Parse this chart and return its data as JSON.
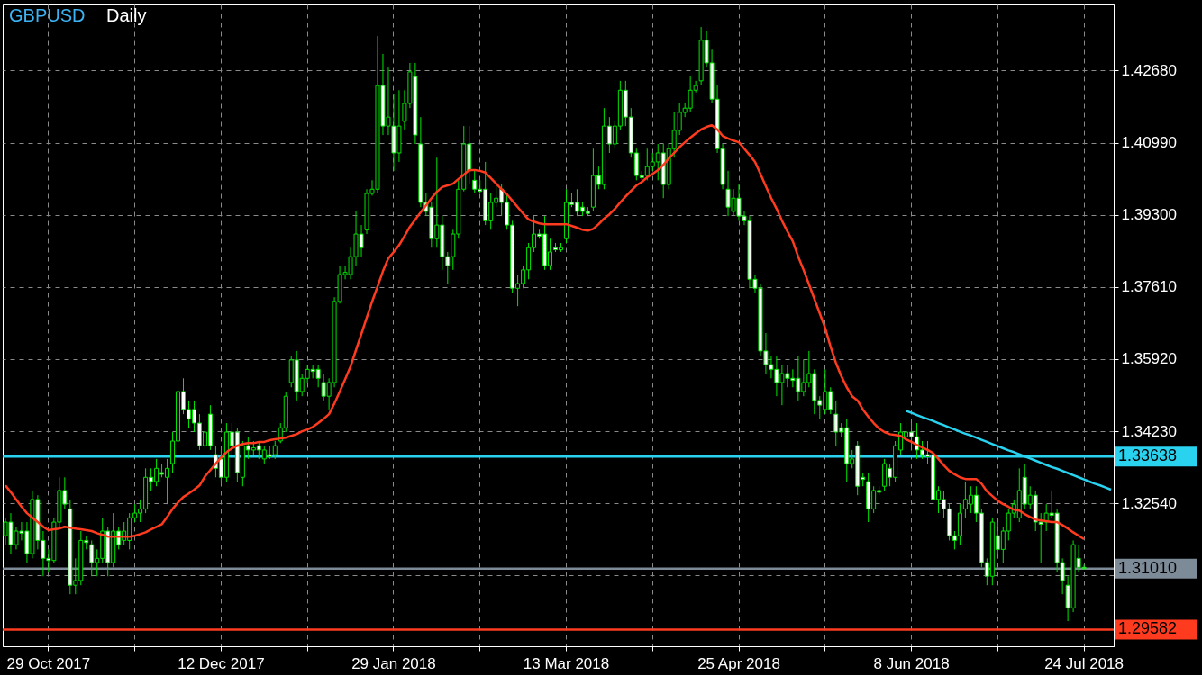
{
  "chart_data": {
    "type": "candlestick",
    "title": "GBPUSD",
    "subtitle": "Daily",
    "categories": [
      null,
      null,
      null,
      null,
      null,
      null,
      null,
      null,
      "29 Oct 2017",
      null,
      null,
      null,
      null,
      null,
      null,
      null,
      null,
      null,
      null,
      null,
      null,
      null,
      null,
      null,
      null,
      null,
      null,
      null,
      null,
      null,
      null,
      null,
      null,
      null,
      null,
      null,
      null,
      null,
      null,
      null,
      "12 Dec 2017",
      null,
      null,
      null,
      null,
      null,
      null,
      null,
      null,
      null,
      null,
      null,
      null,
      null,
      null,
      null,
      null,
      null,
      null,
      null,
      null,
      null,
      null,
      null,
      null,
      null,
      null,
      null,
      null,
      null,
      null,
      null,
      "29 Jan 2018",
      null,
      null,
      null,
      null,
      null,
      null,
      null,
      null,
      null,
      null,
      null,
      null,
      null,
      null,
      null,
      null,
      null,
      null,
      null,
      null,
      null,
      null,
      null,
      null,
      null,
      null,
      null,
      null,
      null,
      null,
      null,
      "13 Mar 2018",
      null,
      null,
      null,
      null,
      null,
      null,
      null,
      null,
      null,
      null,
      null,
      null,
      null,
      null,
      null,
      null,
      null,
      null,
      null,
      null,
      null,
      null,
      null,
      null,
      null,
      null,
      null,
      null,
      null,
      null,
      null,
      "25 Apr 2018",
      null,
      null,
      null,
      null,
      null,
      null,
      null,
      null,
      null,
      null,
      null,
      null,
      null,
      null,
      null,
      null,
      null,
      null,
      null,
      null,
      null,
      null,
      null,
      null,
      null,
      null,
      null,
      null,
      null,
      null,
      null,
      "8 Jun 2018",
      null,
      null,
      null,
      null,
      null,
      null,
      null,
      null,
      null,
      null,
      null,
      null,
      null,
      null,
      null,
      null,
      null,
      null,
      null,
      null,
      null,
      null,
      null,
      null,
      null,
      null,
      null,
      null,
      null,
      null,
      null,
      "24 Jul 2018",
      null,
      null,
      null,
      null,
      null
    ],
    "color": "#00e600",
    "ohlc": [
      [
        1.3178,
        1.322,
        1.3157,
        1.321
      ],
      [
        1.321,
        1.3231,
        1.3136,
        1.3157
      ],
      [
        1.3157,
        1.3199,
        1.3146,
        1.3189
      ],
      [
        1.3189,
        1.321,
        1.3167,
        1.3184
      ],
      [
        1.3189,
        1.321,
        1.3115,
        1.3136
      ],
      [
        1.3136,
        1.3284,
        1.3125,
        1.3263
      ],
      [
        1.3263,
        1.3273,
        1.3146,
        1.3167
      ],
      [
        1.3167,
        1.3189,
        1.3083,
        1.3125
      ],
      [
        1.3125,
        1.3146,
        1.3094,
        1.312
      ],
      [
        1.312,
        1.322,
        1.3115,
        1.321
      ],
      [
        1.321,
        1.3315,
        1.3199,
        1.3284
      ],
      [
        1.3284,
        1.3315,
        1.3241,
        1.3252
      ],
      [
        1.3241,
        1.3263,
        1.3041,
        1.3062
      ],
      [
        1.3062,
        1.3125,
        1.3041,
        1.3073
      ],
      [
        1.3073,
        1.3189,
        1.3062,
        1.3167
      ],
      [
        1.3167,
        1.3178,
        1.3146,
        1.3162
      ],
      [
        1.3157,
        1.3167,
        1.3083,
        1.3115
      ],
      [
        1.3115,
        1.3146,
        1.3083,
        1.3125
      ],
      [
        1.3125,
        1.322,
        1.3115,
        1.3189
      ],
      [
        1.3189,
        1.3199,
        1.3083,
        1.3115
      ],
      [
        1.3115,
        1.3231,
        1.3104,
        1.3189
      ],
      [
        1.3189,
        1.3199,
        1.3146,
        1.3157
      ],
      [
        1.3167,
        1.321,
        1.3157,
        1.3189
      ],
      [
        1.3167,
        1.3231,
        1.3146,
        1.322
      ],
      [
        1.322,
        1.3252,
        1.321,
        1.3231
      ],
      [
        1.3231,
        1.3263,
        1.321,
        1.3241
      ],
      [
        1.3241,
        1.3336,
        1.3231,
        1.3315
      ],
      [
        1.3315,
        1.3336,
        1.3284,
        1.3305
      ],
      [
        1.3305,
        1.3358,
        1.3294,
        1.3336
      ],
      [
        1.3326,
        1.3347,
        1.3315,
        1.3322
      ],
      [
        1.3315,
        1.3358,
        1.3252,
        1.3336
      ],
      [
        1.3347,
        1.3421,
        1.3326,
        1.34
      ],
      [
        1.34,
        1.3547,
        1.3389,
        1.3516
      ],
      [
        1.3516,
        1.3547,
        1.3463,
        1.3474
      ],
      [
        1.3474,
        1.3495,
        1.3431,
        1.3452
      ],
      [
        1.3474,
        1.3495,
        1.3421,
        1.3442
      ],
      [
        1.3442,
        1.3463,
        1.3379,
        1.3389
      ],
      [
        1.3389,
        1.3452,
        1.3379,
        1.3421
      ],
      [
        1.3463,
        1.3484,
        1.3379,
        1.3389
      ],
      [
        1.3368,
        1.3389,
        1.3315,
        1.3336
      ],
      [
        1.3358,
        1.3379,
        1.3305,
        1.3315
      ],
      [
        1.3315,
        1.3442,
        1.3305,
        1.3421
      ],
      [
        1.3421,
        1.3442,
        1.3368,
        1.3389
      ],
      [
        1.3421,
        1.3431,
        1.3305,
        1.3326
      ],
      [
        1.3315,
        1.34,
        1.3294,
        1.3389
      ],
      [
        1.3389,
        1.341,
        1.3358,
        1.3379
      ],
      [
        1.3379,
        1.34,
        1.3368,
        1.3384
      ],
      [
        1.3389,
        1.34,
        1.3358,
        1.3379
      ],
      [
        1.3358,
        1.3389,
        1.3347,
        1.3379
      ],
      [
        1.3368,
        1.3389,
        1.3358,
        1.3363
      ],
      [
        1.3368,
        1.34,
        1.3358,
        1.3389
      ],
      [
        1.34,
        1.3442,
        1.3395,
        1.3431
      ],
      [
        1.3431,
        1.3516,
        1.3421,
        1.3505
      ],
      [
        1.3537,
        1.36,
        1.3526,
        1.359
      ],
      [
        1.359,
        1.3611,
        1.3495,
        1.3516
      ],
      [
        1.3516,
        1.3558,
        1.3505,
        1.3547
      ],
      [
        1.3547,
        1.3579,
        1.3537,
        1.3568
      ],
      [
        1.3568,
        1.3579,
        1.3547,
        1.3563
      ],
      [
        1.3568,
        1.3579,
        1.3526,
        1.3547
      ],
      [
        1.3537,
        1.3558,
        1.3495,
        1.3505
      ],
      [
        1.3505,
        1.3547,
        1.3474,
        1.3537
      ],
      [
        1.3537,
        1.3737,
        1.3526,
        1.3727
      ],
      [
        1.3727,
        1.3811,
        1.3722,
        1.379
      ],
      [
        1.379,
        1.3811,
        1.3779,
        1.3795
      ],
      [
        1.379,
        1.3853,
        1.3779,
        1.3832
      ],
      [
        1.3832,
        1.3938,
        1.3811,
        1.3885
      ],
      [
        1.3885,
        1.3906,
        1.3832,
        1.3853
      ],
      [
        1.3895,
        1.399,
        1.3885,
        1.398
      ],
      [
        1.398,
        1.4011,
        1.3975,
        1.399
      ],
      [
        1.399,
        1.4349,
        1.398,
        1.4233
      ],
      [
        1.4233,
        1.4307,
        1.4117,
        1.4138
      ],
      [
        1.4138,
        1.4275,
        1.4117,
        1.4159
      ],
      [
        1.4138,
        1.4212,
        1.4033,
        1.4075
      ],
      [
        1.4075,
        1.4222,
        1.4054,
        1.4138
      ],
      [
        1.4149,
        1.4222,
        1.4128,
        1.4191
      ],
      [
        1.4191,
        1.4286,
        1.418,
        1.4265
      ],
      [
        1.4254,
        1.4286,
        1.4096,
        1.4117
      ],
      [
        1.4096,
        1.4159,
        1.3948,
        1.3959
      ],
      [
        1.3959,
        1.398,
        1.3927,
        1.3938
      ],
      [
        1.3948,
        1.3959,
        1.3853,
        1.3874
      ],
      [
        1.3874,
        1.4064,
        1.3853,
        1.3906
      ],
      [
        1.3906,
        1.3927,
        1.3801,
        1.3832
      ],
      [
        1.3832,
        1.3843,
        1.3769,
        1.3811
      ],
      [
        1.3832,
        1.3895,
        1.3801,
        1.3885
      ],
      [
        1.3885,
        1.4011,
        1.3874,
        1.399
      ],
      [
        1.399,
        1.4138,
        1.3985,
        1.4096
      ],
      [
        1.4096,
        1.4138,
        1.4001,
        1.4033
      ],
      [
        1.4011,
        1.4033,
        1.398,
        1.399
      ],
      [
        1.399,
        1.4011,
        1.398,
        1.3985
      ],
      [
        1.399,
        1.4054,
        1.3906,
        1.3916
      ],
      [
        1.3916,
        1.398,
        1.3895,
        1.3959
      ],
      [
        1.3959,
        1.4001,
        1.3948,
        1.3969
      ],
      [
        1.399,
        1.4001,
        1.3927,
        1.3959
      ],
      [
        1.3959,
        1.398,
        1.3895,
        1.3906
      ],
      [
        1.3906,
        1.3916,
        1.3748,
        1.3758
      ],
      [
        1.3758,
        1.379,
        1.3716,
        1.3769
      ],
      [
        1.3769,
        1.3811,
        1.3758,
        1.3801
      ],
      [
        1.3801,
        1.3864,
        1.3779,
        1.3853
      ],
      [
        1.3853,
        1.3927,
        1.3843,
        1.3885
      ],
      [
        1.3885,
        1.3895,
        1.3874,
        1.388
      ],
      [
        1.3885,
        1.3927,
        1.3801,
        1.3811
      ],
      [
        1.3811,
        1.3874,
        1.3801,
        1.3843
      ],
      [
        1.3853,
        1.3864,
        1.3843,
        1.3848
      ],
      [
        1.3848,
        1.3864,
        1.3843,
        1.3853
      ],
      [
        1.3874,
        1.399,
        1.3864,
        1.3959
      ],
      [
        1.3959,
        1.398,
        1.3948,
        1.3954
      ],
      [
        1.3959,
        1.399,
        1.3927,
        1.3938
      ],
      [
        1.3948,
        1.3959,
        1.3927,
        1.3938
      ],
      [
        1.3938,
        1.3948,
        1.3927,
        1.3933
      ],
      [
        1.3948,
        1.4085,
        1.3938,
        1.4022
      ],
      [
        1.4022,
        1.4043,
        1.399,
        1.4001
      ],
      [
        1.4001,
        1.418,
        1.399,
        1.4138
      ],
      [
        1.4138,
        1.4159,
        1.4075,
        1.4096
      ],
      [
        1.4096,
        1.4149,
        1.4085,
        1.4138
      ],
      [
        1.4138,
        1.4244,
        1.4128,
        1.4222
      ],
      [
        1.4222,
        1.4244,
        1.4138,
        1.4159
      ],
      [
        1.4159,
        1.418,
        1.4064,
        1.4075
      ],
      [
        1.4075,
        1.4085,
        1.4011,
        1.4022
      ],
      [
        1.4022,
        1.4033,
        1.4011,
        1.4017
      ],
      [
        1.4022,
        1.4085,
        1.4011,
        1.4043
      ],
      [
        1.4043,
        1.4075,
        1.4033,
        1.4054
      ],
      [
        1.4054,
        1.4096,
        1.4011,
        1.4075
      ],
      [
        1.4075,
        1.4096,
        1.3969,
        1.4001
      ],
      [
        1.4001,
        1.4096,
        1.399,
        1.4085
      ],
      [
        1.4085,
        1.417,
        1.4064,
        1.4128
      ],
      [
        1.4128,
        1.4191,
        1.4117,
        1.417
      ],
      [
        1.417,
        1.4191,
        1.4159,
        1.418
      ],
      [
        1.418,
        1.4254,
        1.417,
        1.4222
      ],
      [
        1.4222,
        1.4244,
        1.4217,
        1.4233
      ],
      [
        1.4244,
        1.437,
        1.4233,
        1.4339
      ],
      [
        1.4339,
        1.436,
        1.4275,
        1.4286
      ],
      [
        1.4286,
        1.4317,
        1.4191,
        1.4201
      ],
      [
        1.4201,
        1.4233,
        1.4075,
        1.4085
      ],
      [
        1.4085,
        1.4096,
        1.399,
        1.4001
      ],
      [
        1.399,
        1.4033,
        1.3927,
        1.3948
      ],
      [
        1.3938,
        1.399,
        1.3927,
        1.3969
      ],
      [
        1.3969,
        1.4001,
        1.3916,
        1.3927
      ],
      [
        1.3927,
        1.3938,
        1.3906,
        1.3916
      ],
      [
        1.3916,
        1.3927,
        1.3758,
        1.3779
      ],
      [
        1.3779,
        1.379,
        1.3748,
        1.3758
      ],
      [
        1.3758,
        1.3769,
        1.36,
        1.3611
      ],
      [
        1.3611,
        1.3653,
        1.3558,
        1.3579
      ],
      [
        1.3579,
        1.36,
        1.3547,
        1.3568
      ],
      [
        1.3568,
        1.36,
        1.3505,
        1.3537
      ],
      [
        1.3537,
        1.3579,
        1.3484,
        1.3558
      ],
      [
        1.3558,
        1.3579,
        1.3526,
        1.3547
      ],
      [
        1.3547,
        1.3568,
        1.3526,
        1.3542
      ],
      [
        1.3547,
        1.36,
        1.3495,
        1.3516
      ],
      [
        1.3516,
        1.359,
        1.3505,
        1.3537
      ],
      [
        1.3537,
        1.3611,
        1.3526,
        1.3558
      ],
      [
        1.3558,
        1.3568,
        1.3463,
        1.3495
      ],
      [
        1.3495,
        1.3505,
        1.3452,
        1.3484
      ],
      [
        1.3474,
        1.3568,
        1.3463,
        1.3516
      ],
      [
        1.3516,
        1.3526,
        1.3463,
        1.3474
      ],
      [
        1.3463,
        1.3495,
        1.3389,
        1.3421
      ],
      [
        1.3431,
        1.3442,
        1.341,
        1.3421
      ],
      [
        1.3431,
        1.3452,
        1.3305,
        1.3347
      ],
      [
        1.3347,
        1.3379,
        1.3336,
        1.3358
      ],
      [
        1.3389,
        1.34,
        1.3273,
        1.3294
      ],
      [
        1.3315,
        1.3326,
        1.3294,
        1.331
      ],
      [
        1.3305,
        1.3326,
        1.321,
        1.3241
      ],
      [
        1.3241,
        1.3294,
        1.3231,
        1.3284
      ],
      [
        1.3284,
        1.3294,
        1.3273,
        1.328
      ],
      [
        1.3294,
        1.3358,
        1.3284,
        1.3347
      ],
      [
        1.3336,
        1.3347,
        1.3294,
        1.3315
      ],
      [
        1.3315,
        1.34,
        1.3305,
        1.3389
      ],
      [
        1.3379,
        1.3442,
        1.3368,
        1.3421
      ],
      [
        1.341,
        1.3452,
        1.3379,
        1.3421
      ],
      [
        1.3421,
        1.3442,
        1.3379,
        1.341
      ],
      [
        1.341,
        1.3442,
        1.3358,
        1.3379
      ],
      [
        1.3379,
        1.34,
        1.3358,
        1.3368
      ],
      [
        1.3368,
        1.34,
        1.3347,
        1.3363
      ],
      [
        1.3368,
        1.3442,
        1.3252,
        1.3263
      ],
      [
        1.3263,
        1.3294,
        1.3231,
        1.3284
      ],
      [
        1.3263,
        1.3284,
        1.322,
        1.3241
      ],
      [
        1.3241,
        1.3252,
        1.3167,
        1.3178
      ],
      [
        1.3178,
        1.3189,
        1.3146,
        1.3167
      ],
      [
        1.3178,
        1.3252,
        1.3157,
        1.3231
      ],
      [
        1.3241,
        1.3305,
        1.322,
        1.3263
      ],
      [
        1.3252,
        1.3294,
        1.3231,
        1.3273
      ],
      [
        1.3273,
        1.3294,
        1.321,
        1.3231
      ],
      [
        1.3231,
        1.3241,
        1.3104,
        1.3115
      ],
      [
        1.3115,
        1.3125,
        1.3062,
        1.3083
      ],
      [
        1.3083,
        1.322,
        1.3062,
        1.321
      ],
      [
        1.3178,
        1.321,
        1.3125,
        1.3146
      ],
      [
        1.3146,
        1.3199,
        1.3115,
        1.3189
      ],
      [
        1.3189,
        1.3241,
        1.3167,
        1.3231
      ],
      [
        1.3231,
        1.3263,
        1.322,
        1.3252
      ],
      [
        1.322,
        1.3336,
        1.321,
        1.3284
      ],
      [
        1.3315,
        1.3347,
        1.3241,
        1.3252
      ],
      [
        1.3252,
        1.3294,
        1.3241,
        1.3273
      ],
      [
        1.3273,
        1.3284,
        1.3189,
        1.321
      ],
      [
        1.321,
        1.3231,
        1.3115,
        1.3205
      ],
      [
        1.321,
        1.3252,
        1.3189,
        1.3231
      ],
      [
        1.3231,
        1.3284,
        1.322,
        1.3226
      ],
      [
        1.3231,
        1.3241,
        1.3094,
        1.3115
      ],
      [
        1.3115,
        1.3125,
        1.3041,
        1.3073
      ],
      [
        1.3062,
        1.3083,
        1.2978,
        1.3009
      ],
      [
        1.3009,
        1.3167,
        1.2999,
        1.3157
      ],
      [
        1.3125,
        1.3157,
        1.3094,
        1.3104
      ],
      [
        1.3104,
        1.311,
        1.3099,
        1.3101
      ],
      null,
      null,
      null,
      null,
      null
    ],
    "series": [
      {
        "type": "line",
        "color": "#ff3b1f",
        "values": [
          1.3296,
          1.328,
          1.3263,
          1.3246,
          1.3231,
          1.322,
          1.321,
          1.3199,
          1.3191,
          1.3193,
          1.3195,
          1.3199,
          1.3197,
          1.3195,
          1.3193,
          1.3191,
          1.3189,
          1.3184,
          1.318,
          1.3176,
          1.3176,
          1.3176,
          1.3176,
          1.3176,
          1.3178,
          1.3182,
          1.3186,
          1.3193,
          1.3199,
          1.3205,
          1.3222,
          1.3241,
          1.3256,
          1.3269,
          1.3277,
          1.3286,
          1.3296,
          1.3317,
          1.3332,
          1.3347,
          1.3362,
          1.3374,
          1.3383,
          1.3389,
          1.3393,
          1.3395,
          1.3395,
          1.3398,
          1.3398,
          1.3402,
          1.3404,
          1.3406,
          1.3408,
          1.3412,
          1.3416,
          1.3423,
          1.3427,
          1.3433,
          1.3442,
          1.3452,
          1.3463,
          1.3488,
          1.3516,
          1.3545,
          1.3575,
          1.3613,
          1.3651,
          1.3689,
          1.3727,
          1.3762,
          1.3798,
          1.3828,
          1.3843,
          1.3859,
          1.388,
          1.3902,
          1.3919,
          1.3936,
          1.3952,
          1.3969,
          1.3984,
          1.3995,
          1.3999,
          1.4003,
          1.4014,
          1.4024,
          1.4035,
          1.4035,
          1.4033,
          1.4029,
          1.4016,
          1.4003,
          1.399,
          1.3978,
          1.3963,
          1.3948,
          1.3933,
          1.3919,
          1.3914,
          1.391,
          1.3908,
          1.3908,
          1.3908,
          1.3908,
          1.3908,
          1.3904,
          1.39,
          1.3895,
          1.3893,
          1.3897,
          1.3908,
          1.3921,
          1.3931,
          1.3944,
          1.3959,
          1.3973,
          1.3986,
          1.3999,
          1.4007,
          1.4018,
          1.4026,
          1.4035,
          1.4047,
          1.4062,
          1.4075,
          1.4089,
          1.41,
          1.4111,
          1.4121,
          1.413,
          1.4136,
          1.414,
          1.413,
          1.4115,
          1.4109,
          1.4104,
          1.41,
          1.4085,
          1.407,
          1.4054,
          1.4026,
          1.3997,
          1.3969,
          1.3944,
          1.3916,
          1.3891,
          1.3868,
          1.3832,
          1.3801,
          1.3767,
          1.3733,
          1.3699,
          1.3665,
          1.3621,
          1.3583,
          1.3552,
          1.3526,
          1.3505,
          1.3495,
          1.3474,
          1.3457,
          1.3442,
          1.3429,
          1.3421,
          1.3416,
          1.3414,
          1.3412,
          1.3404,
          1.3398,
          1.3391,
          1.3385,
          1.3379,
          1.3372,
          1.3358,
          1.3343,
          1.333,
          1.3322,
          1.3315,
          1.3311,
          1.3311,
          1.3311,
          1.33,
          1.3282,
          1.3271,
          1.326,
          1.3252,
          1.3246,
          1.3239,
          1.3237,
          1.3229,
          1.3222,
          1.3216,
          1.3214,
          1.3212,
          1.321,
          1.321,
          1.3203,
          1.3195,
          1.3186,
          1.3178,
          1.317,
          null,
          null,
          null,
          null,
          null
        ]
      },
      {
        "type": "line",
        "color": "#29d3f0",
        "values": [
          null,
          null,
          null,
          null,
          null,
          null,
          null,
          null,
          null,
          null,
          null,
          null,
          null,
          null,
          null,
          null,
          null,
          null,
          null,
          null,
          null,
          null,
          null,
          null,
          null,
          null,
          null,
          null,
          null,
          null,
          null,
          null,
          null,
          null,
          null,
          null,
          null,
          null,
          null,
          null,
          null,
          null,
          null,
          null,
          null,
          null,
          null,
          null,
          null,
          null,
          null,
          null,
          null,
          null,
          null,
          null,
          null,
          null,
          null,
          null,
          null,
          null,
          null,
          null,
          null,
          null,
          null,
          null,
          null,
          null,
          null,
          null,
          null,
          null,
          null,
          null,
          null,
          null,
          null,
          null,
          null,
          null,
          null,
          null,
          null,
          null,
          null,
          null,
          null,
          null,
          null,
          null,
          null,
          null,
          null,
          null,
          null,
          null,
          null,
          null,
          null,
          null,
          null,
          null,
          null,
          null,
          null,
          null,
          null,
          null,
          null,
          null,
          null,
          null,
          null,
          null,
          null,
          null,
          null,
          null,
          null,
          null,
          null,
          null,
          null,
          null,
          null,
          null,
          null,
          null,
          null,
          null,
          null,
          null,
          null,
          null,
          null,
          null,
          null,
          null,
          null,
          null,
          null,
          null,
          null,
          null,
          null,
          null,
          null,
          null,
          null,
          null,
          null,
          null,
          null,
          null,
          null,
          null,
          null,
          null,
          null,
          null,
          null,
          null,
          null,
          null,
          null,
          1.3471,
          1.3466,
          1.3461,
          1.3456,
          1.3452,
          1.3447,
          1.3442,
          1.3437,
          1.3432,
          1.3427,
          1.3422,
          1.3417,
          1.3413,
          1.3408,
          1.3403,
          1.3398,
          1.3393,
          1.3388,
          1.3383,
          1.3378,
          1.3374,
          1.3369,
          1.3364,
          1.3359,
          1.3354,
          1.3349,
          1.3344,
          1.3339,
          1.3335,
          1.333,
          1.3325,
          1.332,
          1.3315,
          1.331,
          1.3305,
          1.33,
          1.3296,
          1.3291,
          1.3286
        ]
      }
    ],
    "ylim": [
      1.2919,
      1.4423
    ],
    "yticks": [
      {
        "value": 1.3085,
        "label": null
      },
      {
        "value": 1.3254,
        "label": "1.32540"
      },
      {
        "value": 1.3423,
        "label": "1.34230"
      },
      {
        "value": 1.3592,
        "label": "1.35920"
      },
      {
        "value": 1.3761,
        "label": "1.37610"
      },
      {
        "value": 1.393,
        "label": "1.39300"
      },
      {
        "value": 1.4099,
        "label": "1.40990"
      },
      {
        "value": 1.4268,
        "label": "1.42680"
      }
    ],
    "ref_lines": [
      {
        "axis": "y",
        "value": 1.33638,
        "label": "1.33638",
        "color": "#29d3f0"
      },
      {
        "axis": "y",
        "value": 1.3101,
        "label": "1.31010",
        "color": "#7d8a97"
      },
      {
        "axis": "y",
        "value": 1.29582,
        "label": "1.29582",
        "color": "#ff3b1f"
      }
    ],
    "grid": true
  }
}
